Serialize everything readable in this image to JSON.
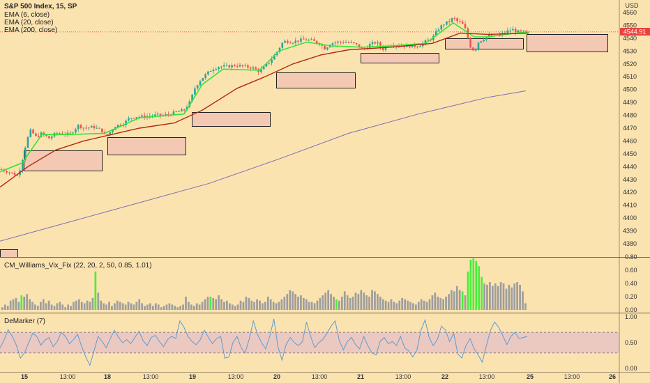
{
  "legend": {
    "title": "S&P 500 Index, 15, SP",
    "ema6": "EMA (6, close)",
    "ema20": "EMA (20, close)",
    "ema200": "EMA (200, close)",
    "vix": "CM_Williams_Vix_Fix (22, 20, 2, 50, 0.85, 1.01)",
    "demarker": "DeMarker (7)"
  },
  "price_axis": {
    "unit": "USD",
    "last_price": "4544.91"
  },
  "colors": {
    "background": "#fbe3b0",
    "up_candle": "#2ba39a",
    "down_candle": "#ef5350",
    "ema6": "#33e633",
    "ema20": "#b22a0c",
    "ema200": "#7a6fb8",
    "zone_fill": "#f4c9b4",
    "vix_gray": "#9e9e9e",
    "vix_green": "#4aef3c",
    "demarker_line": "#5b9bd5",
    "demarker_band": "#e8c4c4",
    "last_price_tag": "#e8423f"
  },
  "chart_data": [
    {
      "type": "candlestick",
      "title": "S&P 500 Index, 15, SP",
      "x_ticks": [
        "15",
        "13:00",
        "18",
        "13:00",
        "19",
        "13:00",
        "20",
        "13:00",
        "21",
        "13:00",
        "22",
        "13:00",
        "25",
        "13:00",
        "26"
      ],
      "y_ticks": [
        4380,
        4390,
        4400,
        4410,
        4420,
        4430,
        4440,
        4450,
        4460,
        4470,
        4480,
        4490,
        4500,
        4510,
        4520,
        4530,
        4540,
        4550,
        4560
      ],
      "ylim": [
        4375,
        4565
      ],
      "close_path": [
        [
          0,
          4438
        ],
        [
          12,
          4436
        ],
        [
          26,
          4433
        ],
        [
          32,
          4445
        ],
        [
          38,
          4460
        ],
        [
          44,
          4468
        ],
        [
          52,
          4463
        ],
        [
          60,
          4466
        ],
        [
          70,
          4462
        ],
        [
          80,
          4466
        ],
        [
          90,
          4466
        ],
        [
          100,
          4465
        ],
        [
          112,
          4472
        ],
        [
          122,
          4470
        ],
        [
          134,
          4471
        ],
        [
          146,
          4468
        ],
        [
          152,
          4463
        ],
        [
          158,
          4467
        ],
        [
          166,
          4472
        ],
        [
          176,
          4473
        ],
        [
          186,
          4478
        ],
        [
          196,
          4479
        ],
        [
          208,
          4479
        ],
        [
          220,
          4480
        ],
        [
          236,
          4480
        ],
        [
          250,
          4482
        ],
        [
          264,
          4484
        ],
        [
          272,
          4490
        ],
        [
          280,
          4502
        ],
        [
          288,
          4508
        ],
        [
          296,
          4512
        ],
        [
          304,
          4516
        ],
        [
          314,
          4518
        ],
        [
          326,
          4518
        ],
        [
          338,
          4519
        ],
        [
          350,
          4518
        ],
        [
          362,
          4517
        ],
        [
          372,
          4514
        ],
        [
          380,
          4518
        ],
        [
          390,
          4524
        ],
        [
          398,
          4530
        ],
        [
          404,
          4536
        ],
        [
          410,
          4538
        ],
        [
          418,
          4537
        ],
        [
          426,
          4538
        ],
        [
          436,
          4539
        ],
        [
          448,
          4538
        ],
        [
          458,
          4536
        ],
        [
          466,
          4532
        ],
        [
          474,
          4536
        ],
        [
          484,
          4537
        ],
        [
          496,
          4537
        ],
        [
          506,
          4536
        ],
        [
          514,
          4534
        ],
        [
          520,
          4531
        ],
        [
          530,
          4535
        ],
        [
          540,
          4537
        ],
        [
          548,
          4531
        ],
        [
          556,
          4535
        ],
        [
          566,
          4535
        ],
        [
          578,
          4534
        ],
        [
          590,
          4534
        ],
        [
          600,
          4534
        ],
        [
          612,
          4538
        ],
        [
          620,
          4540
        ],
        [
          628,
          4547
        ],
        [
          636,
          4551
        ],
        [
          644,
          4553
        ],
        [
          650,
          4556
        ],
        [
          656,
          4553
        ],
        [
          662,
          4552
        ],
        [
          668,
          4546
        ],
        [
          674,
          4534
        ],
        [
          680,
          4530
        ],
        [
          686,
          4537
        ],
        [
          694,
          4540
        ],
        [
          702,
          4542
        ],
        [
          710,
          4541
        ],
        [
          718,
          4543
        ],
        [
          726,
          4545
        ],
        [
          734,
          4547
        ],
        [
          742,
          4545
        ],
        [
          750,
          4545
        ],
        [
          758,
          4545
        ]
      ]
    },
    {
      "type": "line",
      "series": [
        {
          "name": "EMA (6, close)",
          "points": [
            [
              0,
              4436
            ],
            [
              32,
              4443
            ],
            [
              60,
              4465
            ],
            [
              100,
              4465
            ],
            [
              150,
              4466
            ],
            [
              200,
              4478
            ],
            [
              264,
              4481
            ],
            [
              290,
              4504
            ],
            [
              320,
              4516
            ],
            [
              372,
              4515
            ],
            [
              400,
              4530
            ],
            [
              440,
              4537
            ],
            [
              476,
              4534
            ],
            [
              520,
              4533
            ],
            [
              560,
              4534
            ],
            [
              610,
              4536
            ],
            [
              650,
              4552
            ],
            [
              680,
              4541
            ],
            [
              700,
              4541
            ],
            [
              740,
              4544
            ],
            [
              758,
              4545
            ]
          ]
        },
        {
          "name": "EMA (20, close)",
          "points": [
            [
              0,
              4424
            ],
            [
              40,
              4440
            ],
            [
              80,
              4453
            ],
            [
              120,
              4460
            ],
            [
              160,
              4465
            ],
            [
              200,
              4470
            ],
            [
              250,
              4474
            ],
            [
              290,
              4484
            ],
            [
              340,
              4501
            ],
            [
              380,
              4510
            ],
            [
              420,
              4520
            ],
            [
              460,
              4527
            ],
            [
              500,
              4531
            ],
            [
              560,
              4533
            ],
            [
              620,
              4536
            ],
            [
              660,
              4544
            ],
            [
              700,
              4543
            ],
            [
              758,
              4544
            ]
          ]
        },
        {
          "name": "EMA (200, close)",
          "points": [
            [
              0,
              4382
            ],
            [
              100,
              4397
            ],
            [
              200,
              4412
            ],
            [
              300,
              4427
            ],
            [
              400,
              4446
            ],
            [
              500,
              4466
            ],
            [
              600,
              4481
            ],
            [
              700,
              4494
            ],
            [
              754,
              4499
            ]
          ]
        }
      ]
    },
    {
      "type": "bar",
      "title": "CM_Williams_Vix_Fix (22, 20, 2, 50, 0.85, 1.01)",
      "y_ticks": [
        0.0,
        0.2,
        0.4,
        0.6,
        0.8
      ],
      "ylim": [
        0,
        0.8
      ],
      "values": [
        0.04,
        0.08,
        0.06,
        0.14,
        0.16,
        0.18,
        0.12,
        0.22,
        0.2,
        0.24,
        0.16,
        0.12,
        0.08,
        0.06,
        0.12,
        0.16,
        0.1,
        0.14,
        0.08,
        0.06,
        0.1,
        0.12,
        0.08,
        0.04,
        0.08,
        0.06,
        0.12,
        0.14,
        0.16,
        0.12,
        0.1,
        0.14,
        0.12,
        0.18,
        0.58,
        0.26,
        0.14,
        0.1,
        0.08,
        0.12,
        0.06,
        0.1,
        0.14,
        0.12,
        0.1,
        0.08,
        0.12,
        0.1,
        0.08,
        0.12,
        0.16,
        0.1,
        0.06,
        0.08,
        0.1,
        0.06,
        0.1,
        0.08,
        0.04,
        0.06,
        0.08,
        0.1,
        0.08,
        0.06,
        0.04,
        0.06,
        0.08,
        0.2,
        0.12,
        0.08,
        0.06,
        0.1,
        0.08,
        0.12,
        0.16,
        0.2,
        0.2,
        0.18,
        0.16,
        0.22,
        0.16,
        0.12,
        0.14,
        0.1,
        0.08,
        0.06,
        0.08,
        0.14,
        0.12,
        0.2,
        0.18,
        0.14,
        0.12,
        0.16,
        0.14,
        0.1,
        0.12,
        0.2,
        0.16,
        0.12,
        0.1,
        0.12,
        0.16,
        0.2,
        0.24,
        0.3,
        0.28,
        0.24,
        0.2,
        0.22,
        0.18,
        0.16,
        0.12,
        0.12,
        0.1,
        0.14,
        0.18,
        0.22,
        0.26,
        0.3,
        0.24,
        0.2,
        0.16,
        0.14,
        0.2,
        0.28,
        0.22,
        0.18,
        0.2,
        0.26,
        0.24,
        0.3,
        0.26,
        0.22,
        0.2,
        0.3,
        0.28,
        0.24,
        0.2,
        0.16,
        0.14,
        0.12,
        0.16,
        0.12,
        0.1,
        0.14,
        0.18,
        0.16,
        0.14,
        0.12,
        0.1,
        0.08,
        0.12,
        0.16,
        0.14,
        0.12,
        0.16,
        0.22,
        0.26,
        0.2,
        0.18,
        0.16,
        0.2,
        0.24,
        0.3,
        0.28,
        0.36,
        0.3,
        0.28,
        0.22,
        0.58,
        0.76,
        0.78,
        0.74,
        0.66,
        0.5,
        0.4,
        0.38,
        0.42,
        0.36,
        0.4,
        0.36,
        0.42,
        0.4,
        0.32,
        0.38,
        0.34,
        0.4,
        0.42,
        0.38,
        0.28,
        0.1
      ]
    },
    {
      "type": "line",
      "title": "DeMarker (7)",
      "y_ticks": [
        0.0,
        0.5,
        1.0
      ],
      "ylim": [
        0,
        1
      ],
      "bands": [
        0.3,
        0.7
      ],
      "values": [
        0.4,
        0.55,
        0.75,
        0.62,
        0.45,
        0.2,
        0.3,
        0.5,
        0.68,
        0.62,
        0.45,
        0.55,
        0.6,
        0.42,
        0.52,
        0.7,
        0.62,
        0.48,
        0.56,
        0.66,
        0.42,
        0.22,
        0.06,
        0.34,
        0.62,
        0.52,
        0.4,
        0.58,
        0.74,
        0.6,
        0.5,
        0.56,
        0.48,
        0.6,
        0.72,
        0.54,
        0.44,
        0.6,
        0.64,
        0.52,
        0.42,
        0.56,
        0.62,
        0.58,
        0.92,
        0.8,
        0.62,
        0.52,
        0.46,
        0.56,
        0.74,
        0.6,
        0.48,
        0.58,
        0.62,
        0.2,
        0.22,
        0.5,
        0.62,
        0.4,
        0.3,
        0.58,
        0.92,
        0.66,
        0.5,
        0.38,
        0.62,
        0.96,
        0.42,
        0.16,
        0.46,
        0.6,
        0.5,
        0.44,
        0.52,
        0.9,
        0.62,
        0.4,
        0.5,
        0.56,
        0.68,
        0.82,
        0.92,
        0.54,
        0.36,
        0.52,
        0.6,
        0.46,
        0.38,
        0.62,
        0.44,
        0.3,
        0.26,
        0.52,
        0.6,
        0.48,
        0.52,
        0.44,
        0.62,
        0.4,
        0.34,
        0.22,
        0.36,
        0.74,
        0.94,
        0.6,
        0.44,
        0.56,
        0.82,
        0.74,
        0.52,
        0.68,
        0.28,
        0.2,
        0.44,
        0.58,
        0.38,
        0.26,
        0.12,
        0.44,
        0.74,
        0.9,
        0.8,
        0.64,
        0.46,
        0.62,
        0.7,
        0.58,
        0.6,
        0.62
      ]
    }
  ]
}
